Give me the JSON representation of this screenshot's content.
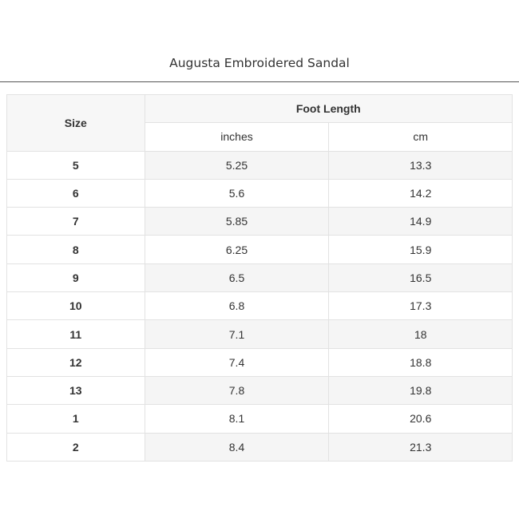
{
  "header": {
    "title": "Augusta Embroidered Sandal"
  },
  "table": {
    "size_header": "Size",
    "group_header": "Foot Length",
    "sub_headers": [
      "inches",
      "cm"
    ],
    "rows": [
      [
        "5",
        "5.25",
        "13.3"
      ],
      [
        "6",
        "5.6",
        "14.2"
      ],
      [
        "7",
        "5.85",
        "14.9"
      ],
      [
        "8",
        "6.25",
        "15.9"
      ],
      [
        "9",
        "6.5",
        "16.5"
      ],
      [
        "10",
        "6.8",
        "17.3"
      ],
      [
        "11",
        "7.1",
        "18"
      ],
      [
        "12",
        "7.4",
        "18.8"
      ],
      [
        "13",
        "7.8",
        "19.8"
      ],
      [
        "1",
        "8.1",
        "20.6"
      ],
      [
        "2",
        "8.4",
        "21.3"
      ]
    ]
  }
}
